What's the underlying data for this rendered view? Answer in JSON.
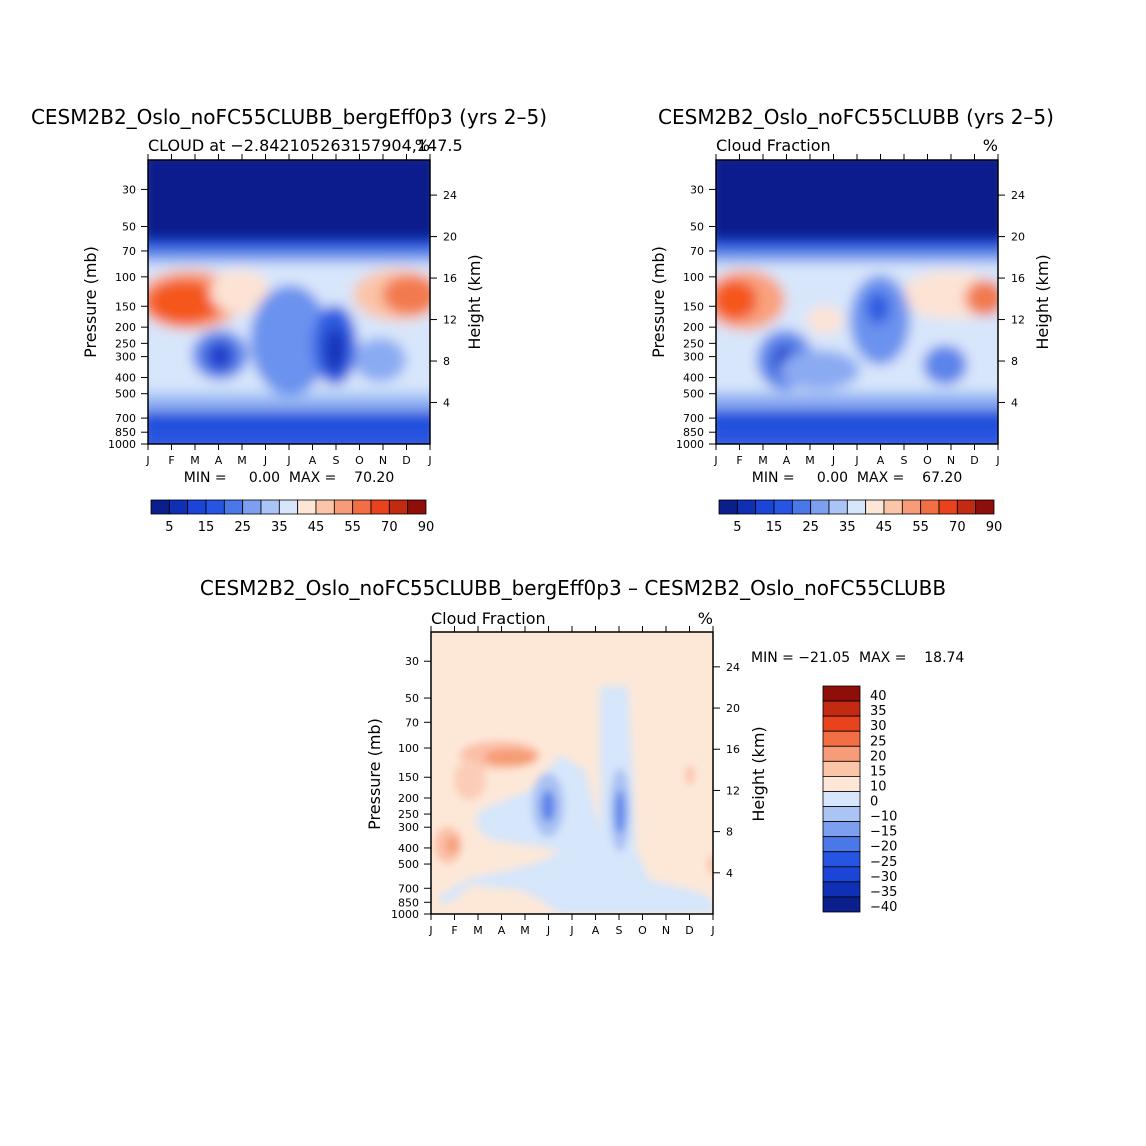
{
  "chart_data": [
    {
      "type": "heatmap",
      "title": "CESM2B2_Oslo_noFC55CLUBB_bergEff0p3 (yrs 2–5)",
      "left_label": "CLOUD at −2.842105263157904,147.5",
      "units": "%",
      "ylabel": "Pressure (mb)",
      "y2label": "Height (km)",
      "months": [
        "J",
        "F",
        "M",
        "A",
        "M",
        "J",
        "J",
        "A",
        "S",
        "O",
        "N",
        "D",
        "J"
      ],
      "pressure_ticks": [
        "30",
        "50",
        "70",
        "100",
        "150",
        "200",
        "250",
        "300",
        "400",
        "500",
        "700",
        "850",
        "1000"
      ],
      "height_ticks": [
        "24",
        "20",
        "16",
        "12",
        "8",
        "4"
      ],
      "stats": "MIN =     0.00  MAX =    70.20",
      "min": 0.0,
      "max": 70.2,
      "colorbar_labels": [
        "5",
        "15",
        "25",
        "35",
        "45",
        "55",
        "70",
        "90"
      ],
      "colorbar_levels": [
        5,
        10,
        15,
        20,
        25,
        30,
        35,
        40,
        45,
        50,
        55,
        60,
        70,
        80,
        90
      ],
      "features": [
        {
          "label": "high cloud max Jan-Mar",
          "month_range": [
            "J",
            "A"
          ],
          "pressure_range": [
            120,
            220
          ],
          "value": 65
        },
        {
          "label": "high cloud max Nov-Jan",
          "month_range": [
            "O",
            "J"
          ],
          "pressure_range": [
            120,
            220
          ],
          "value": 55
        },
        {
          "label": "local min Apr",
          "month": "A",
          "pressure": 300,
          "value": 12
        },
        {
          "label": "local min Sep",
          "month": "S",
          "pressure": 300,
          "value": 10
        }
      ]
    },
    {
      "type": "heatmap",
      "title": "CESM2B2_Oslo_noFC55CLUBB (yrs 2–5)",
      "left_label": "Cloud Fraction",
      "units": "%",
      "ylabel": "Pressure (mb)",
      "y2label": "Height (km)",
      "months": [
        "J",
        "F",
        "M",
        "A",
        "M",
        "J",
        "J",
        "A",
        "S",
        "O",
        "N",
        "D",
        "J"
      ],
      "pressure_ticks": [
        "30",
        "50",
        "70",
        "100",
        "150",
        "200",
        "250",
        "300",
        "400",
        "500",
        "700",
        "850",
        "1000"
      ],
      "height_ticks": [
        "24",
        "20",
        "16",
        "12",
        "8",
        "4"
      ],
      "stats": "MIN =     0.00  MAX =    67.20",
      "min": 0.0,
      "max": 67.2,
      "colorbar_labels": [
        "5",
        "15",
        "25",
        "35",
        "45",
        "55",
        "70",
        "90"
      ],
      "colorbar_levels": [
        5,
        10,
        15,
        20,
        25,
        30,
        35,
        40,
        45,
        50,
        55,
        60,
        70,
        80,
        90
      ],
      "features": [
        {
          "label": "high cloud max Jan-Feb",
          "month_range": [
            "J",
            "M"
          ],
          "pressure_range": [
            120,
            220
          ],
          "value": 60
        },
        {
          "label": "high cloud max Dec-Jan",
          "month_range": [
            "D",
            "J"
          ],
          "pressure_range": [
            120,
            220
          ],
          "value": 55
        },
        {
          "label": "local min Apr",
          "month": "A",
          "pressure": 300,
          "value": 12
        },
        {
          "label": "local min Nov",
          "month": "N",
          "pressure": 350,
          "value": 15
        }
      ]
    },
    {
      "type": "heatmap",
      "title": "CESM2B2_Oslo_noFC55CLUBB_bergEff0p3 – CESM2B2_Oslo_noFC55CLUBB",
      "left_label": "Cloud Fraction",
      "units": "%",
      "ylabel": "Pressure (mb)",
      "y2label": "Height (km)",
      "months": [
        "J",
        "F",
        "M",
        "A",
        "M",
        "J",
        "J",
        "A",
        "S",
        "O",
        "N",
        "D",
        "J"
      ],
      "pressure_ticks": [
        "30",
        "50",
        "70",
        "100",
        "150",
        "200",
        "250",
        "300",
        "400",
        "500",
        "700",
        "850",
        "1000"
      ],
      "height_ticks": [
        "24",
        "20",
        "16",
        "12",
        "8",
        "4"
      ],
      "stats": "MIN = −21.05  MAX =    18.74",
      "min": -21.05,
      "max": 18.74,
      "colorbar_labels": [
        "40",
        "35",
        "30",
        "25",
        "20",
        "15",
        "10",
        "0",
        "−10",
        "−15",
        "−20",
        "−25",
        "−30",
        "−35",
        "−40"
      ],
      "features": [
        {
          "label": "positive Mar-Apr",
          "month": "A",
          "pressure": 130,
          "value": 15
        },
        {
          "label": "negative Jun",
          "month": "J",
          "pressure": 230,
          "value": -18
        },
        {
          "label": "negative Sep",
          "month": "S",
          "pressure": 240,
          "value": -20
        }
      ]
    }
  ]
}
